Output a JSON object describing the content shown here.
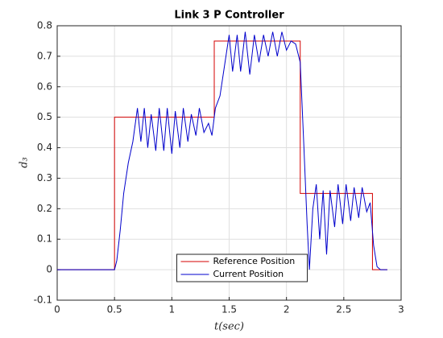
{
  "chart_data": {
    "type": "line",
    "title": "Link 3 P Controller",
    "xlabel": "t(sec)",
    "ylabel": "d₃",
    "xlim": [
      0,
      3
    ],
    "ylim": [
      -0.1,
      0.8
    ],
    "xticks": [
      0,
      0.5,
      1,
      1.5,
      2,
      2.5,
      3
    ],
    "yticks": [
      -0.1,
      0,
      0.1,
      0.2,
      0.3,
      0.4,
      0.5,
      0.6,
      0.7,
      0.8
    ],
    "grid": true,
    "legend": "lower center",
    "series": [
      {
        "name": "Reference Position",
        "color": "#d40000",
        "x": [
          0,
          0.5,
          0.5,
          1.37,
          1.37,
          2.12,
          2.12,
          2.75,
          2.75,
          2.88
        ],
        "values": [
          0,
          0,
          0.5,
          0.5,
          0.75,
          0.75,
          0.25,
          0.25,
          0,
          0
        ]
      },
      {
        "name": "Current Position",
        "color": "#0000cc",
        "x": [
          0,
          0.5,
          0.52,
          0.55,
          0.58,
          0.62,
          0.66,
          0.7,
          0.73,
          0.76,
          0.79,
          0.82,
          0.86,
          0.89,
          0.93,
          0.96,
          1.0,
          1.03,
          1.07,
          1.1,
          1.14,
          1.17,
          1.21,
          1.24,
          1.28,
          1.32,
          1.35,
          1.38,
          1.42,
          1.46,
          1.5,
          1.53,
          1.57,
          1.6,
          1.64,
          1.68,
          1.72,
          1.76,
          1.8,
          1.84,
          1.88,
          1.92,
          1.96,
          2.0,
          2.04,
          2.08,
          2.12,
          2.15,
          2.18,
          2.2,
          2.23,
          2.26,
          2.29,
          2.32,
          2.35,
          2.38,
          2.42,
          2.45,
          2.49,
          2.52,
          2.56,
          2.59,
          2.63,
          2.66,
          2.7,
          2.73,
          2.76,
          2.79,
          2.82,
          2.88
        ],
        "values": [
          0,
          0,
          0.03,
          0.13,
          0.25,
          0.35,
          0.42,
          0.53,
          0.42,
          0.53,
          0.4,
          0.51,
          0.39,
          0.53,
          0.39,
          0.53,
          0.38,
          0.52,
          0.4,
          0.53,
          0.42,
          0.51,
          0.44,
          0.53,
          0.45,
          0.48,
          0.44,
          0.53,
          0.57,
          0.67,
          0.77,
          0.65,
          0.77,
          0.65,
          0.78,
          0.64,
          0.77,
          0.68,
          0.77,
          0.7,
          0.78,
          0.7,
          0.78,
          0.72,
          0.75,
          0.74,
          0.68,
          0.42,
          0.15,
          0.0,
          0.2,
          0.28,
          0.1,
          0.26,
          0.05,
          0.26,
          0.14,
          0.28,
          0.15,
          0.28,
          0.16,
          0.27,
          0.17,
          0.27,
          0.19,
          0.22,
          0.08,
          0.01,
          0,
          0
        ]
      }
    ]
  }
}
